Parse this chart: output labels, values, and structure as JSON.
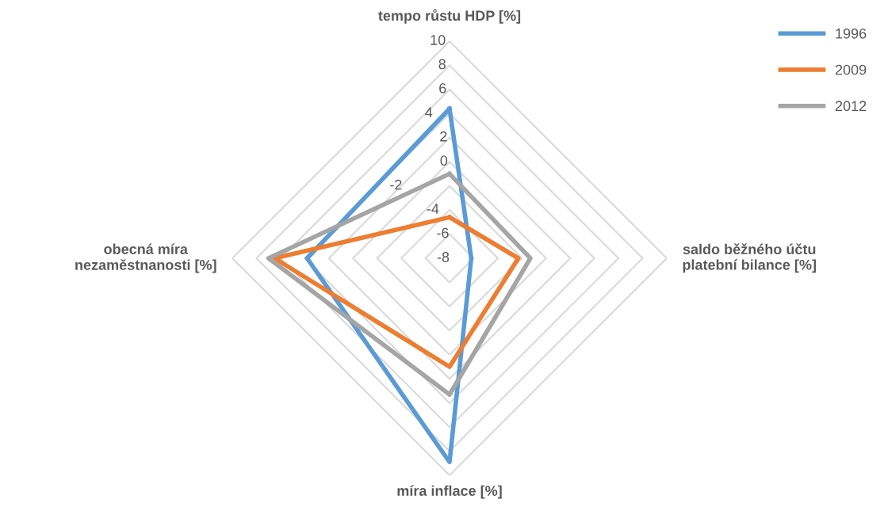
{
  "chart_data": {
    "type": "radar",
    "categories": [
      "tempo růstu HDP [%]",
      "saldo běžného účtu platební bilance [%]",
      "míra inflace [%]",
      "obecná míra nezaměstnanosti [%]"
    ],
    "series": [
      {
        "name": "1996",
        "color": "#5b9bd5",
        "values": [
          4.4,
          -6.2,
          8.9,
          3.8
        ]
      },
      {
        "name": "2009",
        "color": "#ed7d31",
        "values": [
          -4.6,
          -2.3,
          1.0,
          6.5
        ]
      },
      {
        "name": "2012",
        "color": "#a5a5a5",
        "values": [
          -1.0,
          -1.3,
          3.3,
          7.0
        ]
      }
    ],
    "ylim": [
      -8,
      10
    ],
    "yticks": [
      -8,
      -6,
      -4,
      -2,
      0,
      2,
      4,
      6,
      8,
      10
    ],
    "grid": true,
    "legend": "top right",
    "marker": "none"
  }
}
